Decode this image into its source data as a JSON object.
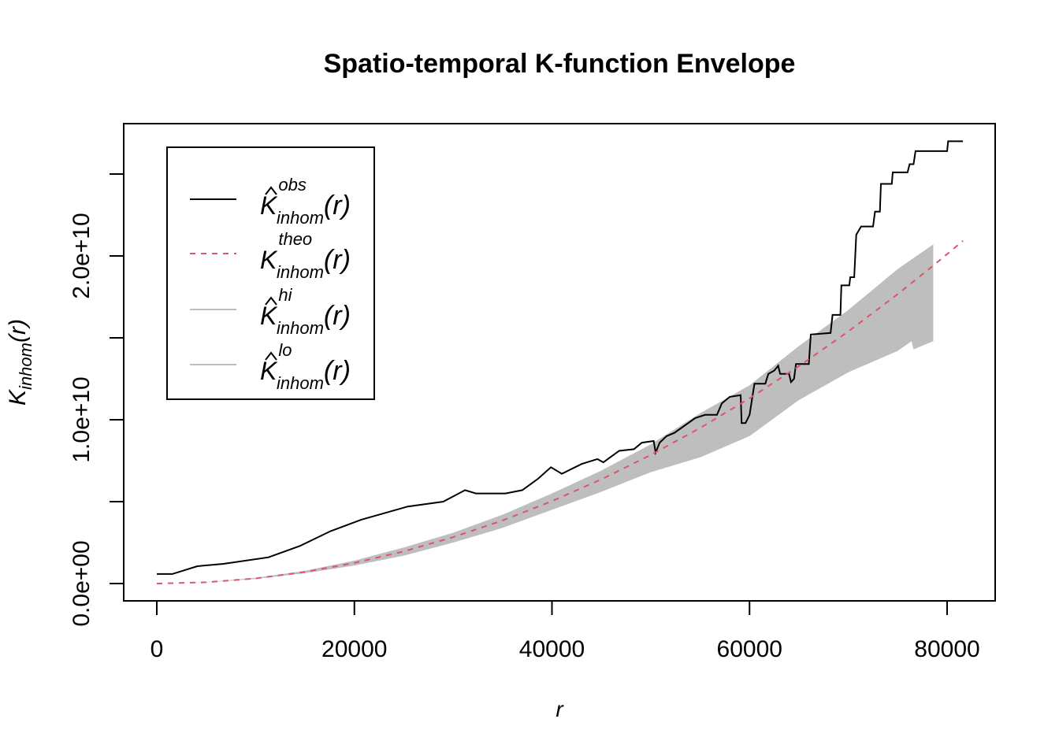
{
  "chart_data": {
    "type": "line",
    "title": "Spatio-temporal K-function Envelope",
    "xlabel": "r",
    "ylabel": {
      "main": "K",
      "sub": "inhom",
      "tail": "(r)"
    },
    "xlim": [
      0,
      81600
    ],
    "ylim": [
      0,
      27000000000
    ],
    "x_ticks": [
      0,
      20000,
      40000,
      60000,
      80000
    ],
    "x_tick_labels": [
      "0",
      "20000",
      "40000",
      "60000",
      "80000"
    ],
    "y_ticks": [
      0,
      5000000000,
      10000000000,
      15000000000,
      20000000000,
      25000000000
    ],
    "y_tick_labels": [
      "0.0e+00",
      "",
      "1.0e+10",
      "",
      "2.0e+10",
      ""
    ],
    "grid": false,
    "legend": {
      "placement": "top-left",
      "entries": [
        {
          "symbol": "K",
          "hat": true,
          "sup": "obs",
          "sub": "inhom",
          "tail": "(r)",
          "color": "#000000",
          "dash": "solid"
        },
        {
          "symbol": "K",
          "hat": false,
          "sup": "theo",
          "sub": "inhom",
          "tail": "(r)",
          "color": "#DF536B",
          "dash": "dashed"
        },
        {
          "symbol": "K",
          "hat": true,
          "sup": "hi",
          "sub": "inhom",
          "tail": "(r)",
          "color": "#BEBEBE",
          "dash": "solid"
        },
        {
          "symbol": "K",
          "hat": true,
          "sup": "lo",
          "sub": "inhom",
          "tail": "(r)",
          "color": "#BEBEBE",
          "dash": "solid"
        }
      ]
    },
    "series": [
      {
        "name": "obs",
        "color": "#000000",
        "r": [
          0,
          1570,
          4100,
          6750,
          11300,
          14500,
          17600,
          20700,
          25400,
          29000,
          31200,
          32300,
          35300,
          37000,
          38600,
          39900,
          41000,
          43000,
          44600,
          45200,
          46800,
          48300,
          49100,
          50300,
          50500,
          50900,
          51600,
          52400,
          54500,
          55500,
          56700,
          57200,
          58000,
          59100,
          59200,
          59600,
          60000,
          60500,
          61200,
          61600,
          61900,
          62500,
          62900,
          63100,
          64000,
          64200,
          64500,
          64700,
          66000,
          66200,
          68200,
          68400,
          69200,
          69300,
          70100,
          70200,
          70600,
          70800,
          71300,
          72500,
          72700,
          73200,
          73300,
          74400,
          74500,
          76000,
          76200,
          76600,
          76800,
          80000,
          80100,
          81600
        ],
        "values": [
          580000000.0,
          580000000.0,
          1060000000.0,
          1200000000.0,
          1600000000.0,
          2300000000.0,
          3200000000.0,
          3900000000.0,
          4700000000.0,
          5000000000.0,
          5700000000.0,
          5500000000.0,
          5500000000.0,
          5700000000.0,
          6400000000.0,
          7100000000.0,
          6700000000.0,
          7300000000.0,
          7600000000.0,
          7400000000.0,
          8100000000.0,
          8200000000.0,
          8600000000.0,
          8700000000.0,
          8000000000.0,
          8600000000.0,
          9000000000.0,
          9200000000.0,
          10100000000.0,
          10300000000.0,
          10300000000.0,
          11000000000.0,
          11400000000.0,
          11500000000.0,
          9800000000.0,
          9800000000.0,
          10300000000.0,
          12200000000.0,
          12200000000.0,
          12200000000.0,
          12800000000.0,
          13000000000.0,
          13300000000.0,
          12800000000.0,
          12800000000.0,
          12300000000.0,
          12500000000.0,
          13400000000.0,
          13400000000.0,
          15200000000.0,
          15300000000.0,
          16400000000.0,
          16400000000.0,
          18200000000.0,
          18200000000.0,
          18700000000.0,
          18700000000.0,
          21300000000.0,
          21800000000.0,
          21800000000.0,
          22700000000.0,
          22700000000.0,
          24400000000.0,
          24400000000.0,
          25100000000.0,
          25100000000.0,
          25600000000.0,
          25600000000.0,
          26400000000.0,
          26400000000.0,
          27000000000.0,
          27000000000.0
        ]
      },
      {
        "name": "theo",
        "color": "#DF536B",
        "r": [
          0,
          5000,
          10000,
          15000,
          20000,
          25000,
          30000,
          35000,
          40000,
          45000,
          50000,
          55000,
          60000,
          65000,
          70000,
          75000,
          78600,
          81600
        ],
        "values": [
          0,
          79000000.0,
          314000000.0,
          707000000.0,
          1260000000.0,
          1960000000.0,
          2830000000.0,
          3850000000.0,
          5030000000.0,
          6360000000.0,
          7850000000.0,
          9500000000.0,
          11310000000.0,
          13270000000.0,
          15390000000.0,
          17670000000.0,
          19410000000.0,
          20920000000.0
        ]
      },
      {
        "name": "hi",
        "color": "#BEBEBE",
        "r": [
          0,
          5000,
          10000,
          15000,
          20000,
          25000,
          30000,
          35000,
          40000,
          45000,
          50000,
          55000,
          60000,
          65000,
          70000,
          75000,
          78600
        ],
        "values": [
          0,
          90000000.0,
          350000000.0,
          780000000.0,
          1400000000.0,
          2200000000.0,
          3100000000.0,
          4200000000.0,
          5500000000.0,
          6900000000.0,
          8500000000.0,
          10400000000.0,
          12100000000.0,
          14500000000.0,
          16700000000.0,
          19200000000.0,
          20700000000.0
        ]
      },
      {
        "name": "lo",
        "color": "#BEBEBE",
        "r": [
          0,
          5000,
          10000,
          15000,
          20000,
          25000,
          30000,
          35000,
          40000,
          45000,
          50000,
          55000,
          60000,
          65000,
          70000,
          75000,
          76400,
          76600,
          78600
        ],
        "values": [
          0,
          70000000.0,
          280000000.0,
          630000000.0,
          1100000000.0,
          1700000000.0,
          2500000000.0,
          3400000000.0,
          4500000000.0,
          5600000000.0,
          6800000000.0,
          7700000000.0,
          9000000000.0,
          11200000000.0,
          12900000000.0,
          14200000000.0,
          14800000000.0,
          14300000000.0,
          14800000000.0
        ]
      }
    ]
  }
}
